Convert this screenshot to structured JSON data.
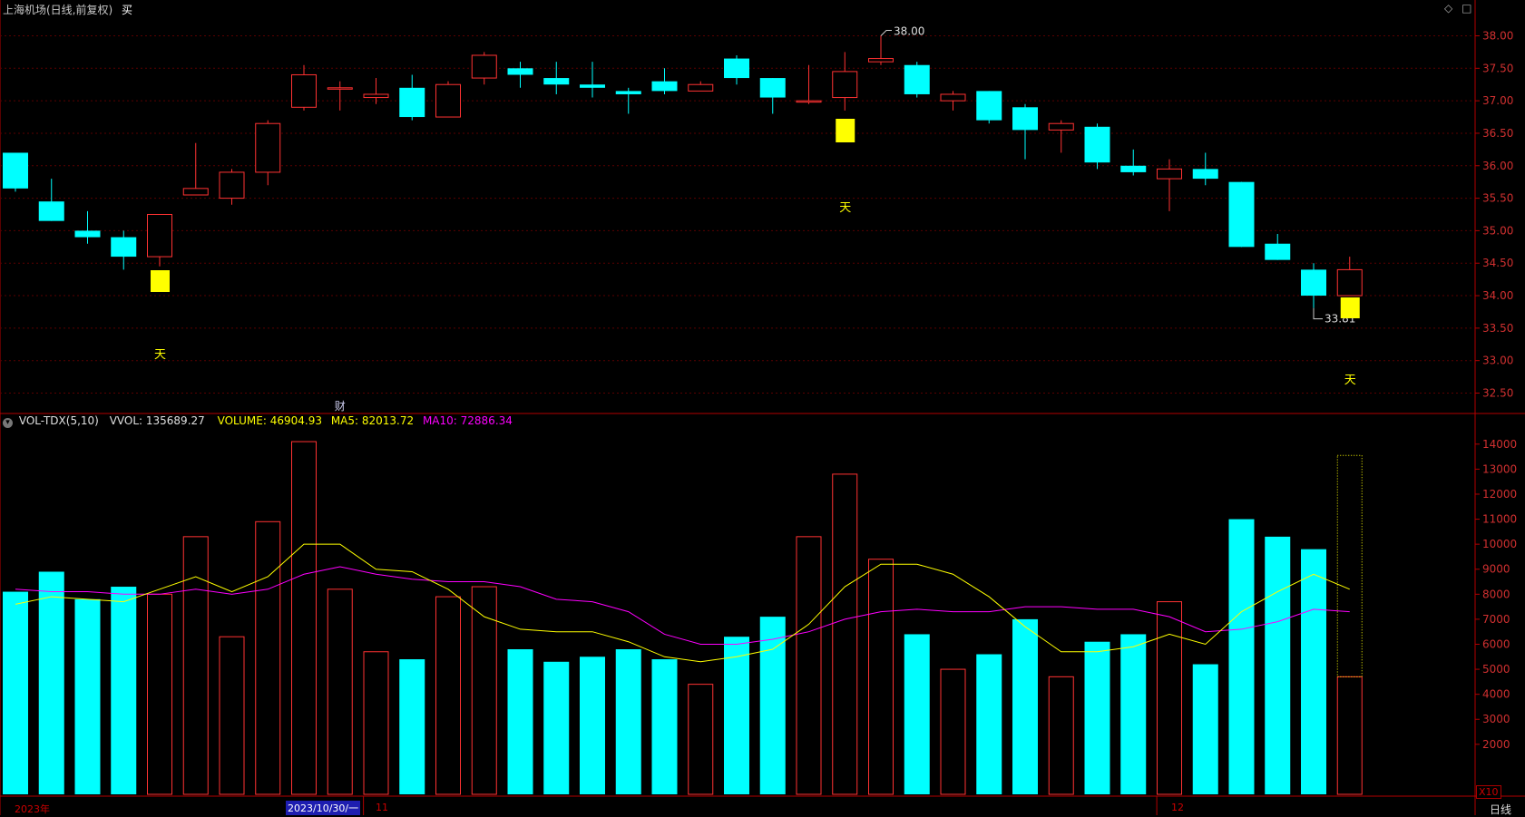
{
  "header": {
    "stock_title": "上海机场(日线,前复权)",
    "trade_mark": "买",
    "top_right_icons": [
      "diamond-icon",
      "square-icon"
    ]
  },
  "indicator": {
    "name": "VOL-TDX(5,10)",
    "vvol_label": "VVOL: 135689.27",
    "volume_label": "VOLUME: 46904.93",
    "ma5_label": "MA5: 82013.72",
    "ma10_label": "MA10: 72886.34",
    "collapse_icon": "chevron-down-icon"
  },
  "axis_badge": "X10",
  "period_label": "日线",
  "bottom_axis": {
    "year_label": "2023年",
    "cursor_date": "2023/10/30/一",
    "month_11": "11",
    "month_12": "12"
  },
  "markers": {
    "high_label": "38.00",
    "low_label": "33.81",
    "sky_char": "天",
    "finance_char": "财"
  },
  "colors": {
    "up": "#ff3232",
    "down": "#00ffff",
    "ma5": "#ffff00",
    "ma10": "#ff00ff",
    "axis": "#b40000",
    "signal": "#ffff00"
  },
  "chart_data": [
    {
      "type": "candlestick",
      "title": "上海机场(日线,前复权)",
      "ylim": [
        32.2,
        38.3
      ],
      "yticks": [
        "32.50",
        "33.00",
        "33.50",
        "34.00",
        "34.50",
        "35.00",
        "35.50",
        "36.00",
        "36.50",
        "37.00",
        "37.50",
        "38.00"
      ],
      "candles": [
        {
          "o": 36.2,
          "h": 36.2,
          "l": 35.6,
          "c": 35.65
        },
        {
          "o": 35.45,
          "h": 35.8,
          "l": 35.15,
          "c": 35.15
        },
        {
          "o": 35.0,
          "h": 35.3,
          "l": 34.8,
          "c": 34.9
        },
        {
          "o": 34.9,
          "h": 35.0,
          "l": 34.4,
          "c": 34.6
        },
        {
          "o": 34.6,
          "h": 35.25,
          "l": 34.45,
          "c": 35.25
        },
        {
          "o": 35.55,
          "h": 36.35,
          "l": 35.55,
          "c": 35.65
        },
        {
          "o": 35.5,
          "h": 35.95,
          "l": 35.4,
          "c": 35.9
        },
        {
          "o": 35.9,
          "h": 36.7,
          "l": 35.7,
          "c": 36.65
        },
        {
          "o": 36.9,
          "h": 37.55,
          "l": 36.85,
          "c": 37.4
        },
        {
          "o": 37.2,
          "h": 37.3,
          "l": 36.85,
          "c": 37.2
        },
        {
          "o": 37.05,
          "h": 37.35,
          "l": 36.95,
          "c": 37.1
        },
        {
          "o": 37.2,
          "h": 37.4,
          "l": 36.7,
          "c": 36.75
        },
        {
          "o": 36.75,
          "h": 37.3,
          "l": 36.75,
          "c": 37.25
        },
        {
          "o": 37.35,
          "h": 37.75,
          "l": 37.25,
          "c": 37.7
        },
        {
          "o": 37.5,
          "h": 37.6,
          "l": 37.2,
          "c": 37.4
        },
        {
          "o": 37.35,
          "h": 37.6,
          "l": 37.1,
          "c": 37.25
        },
        {
          "o": 37.25,
          "h": 37.6,
          "l": 37.05,
          "c": 37.2
        },
        {
          "o": 37.15,
          "h": 37.2,
          "l": 36.8,
          "c": 37.1
        },
        {
          "o": 37.3,
          "h": 37.5,
          "l": 37.1,
          "c": 37.15
        },
        {
          "o": 37.15,
          "h": 37.3,
          "l": 37.15,
          "c": 37.25
        },
        {
          "o": 37.65,
          "h": 37.7,
          "l": 37.25,
          "c": 37.35
        },
        {
          "o": 37.35,
          "h": 37.35,
          "l": 36.8,
          "c": 37.05
        },
        {
          "o": 37.0,
          "h": 37.55,
          "l": 36.95,
          "c": 37.0
        },
        {
          "o": 37.05,
          "h": 37.75,
          "l": 36.85,
          "c": 37.45
        },
        {
          "o": 37.6,
          "h": 38.0,
          "l": 37.55,
          "c": 37.65
        },
        {
          "o": 37.55,
          "h": 37.6,
          "l": 37.05,
          "c": 37.1
        },
        {
          "o": 37.0,
          "h": 37.15,
          "l": 36.85,
          "c": 37.1
        },
        {
          "o": 37.15,
          "h": 37.15,
          "l": 36.65,
          "c": 36.7
        },
        {
          "o": 36.9,
          "h": 36.95,
          "l": 36.1,
          "c": 36.55
        },
        {
          "o": 36.55,
          "h": 36.7,
          "l": 36.2,
          "c": 36.65
        },
        {
          "o": 36.6,
          "h": 36.65,
          "l": 35.95,
          "c": 36.05
        },
        {
          "o": 36.0,
          "h": 36.25,
          "l": 35.85,
          "c": 35.9
        },
        {
          "o": 35.8,
          "h": 36.1,
          "l": 35.3,
          "c": 35.95
        },
        {
          "o": 35.95,
          "h": 36.2,
          "l": 35.7,
          "c": 35.8
        },
        {
          "o": 35.75,
          "h": 35.75,
          "l": 34.75,
          "c": 34.75
        },
        {
          "o": 34.8,
          "h": 34.95,
          "l": 34.55,
          "c": 34.55
        },
        {
          "o": 34.4,
          "h": 34.5,
          "l": 33.81,
          "c": 34.0
        },
        {
          "o": 34.0,
          "h": 34.6,
          "l": 34.0,
          "c": 34.4
        }
      ]
    },
    {
      "type": "bar",
      "title": "VOL-TDX(5,10)",
      "ylim": [
        0,
        14500
      ],
      "yticks": [
        2000,
        3000,
        4000,
        5000,
        6000,
        7000,
        8000,
        9000,
        10000,
        11000,
        12000,
        13000,
        14000
      ],
      "volumes": [
        8100,
        8900,
        7800,
        8300,
        8000,
        10300,
        6300,
        10900,
        14100,
        8200,
        5700,
        5400,
        7900,
        8300,
        5800,
        5300,
        5500,
        5800,
        5400,
        4400,
        6300,
        7100,
        10300,
        12800,
        9400,
        6400,
        5000,
        5600,
        7000,
        4700,
        6100,
        6400,
        7700,
        5200,
        11000,
        10300,
        9800,
        4700
      ],
      "current_volume_ceiling": 13550,
      "ma5": [
        7600,
        7900,
        7800,
        7700,
        8200,
        8700,
        8100,
        8700,
        10000,
        10000,
        9000,
        8900,
        8200,
        7100,
        6600,
        6500,
        6500,
        6100,
        5500,
        5300,
        5500,
        5800,
        6800,
        8300,
        9200,
        9200,
        8800,
        7900,
        6700,
        5700,
        5700,
        5900,
        6400,
        6000,
        7300,
        8100,
        8800,
        8200
      ],
      "ma10": [
        8200,
        8100,
        8100,
        8000,
        8000,
        8200,
        8000,
        8200,
        8800,
        9100,
        8800,
        8600,
        8500,
        8500,
        8300,
        7800,
        7700,
        7300,
        6400,
        6000,
        6000,
        6200,
        6500,
        7000,
        7300,
        7400,
        7300,
        7300,
        7500,
        7500,
        7400,
        7400,
        7100,
        6500,
        6600,
        6900,
        7400,
        7300
      ]
    }
  ],
  "signals": {
    "sky_boxes": [
      4,
      23,
      37
    ],
    "finance_at": 9
  }
}
